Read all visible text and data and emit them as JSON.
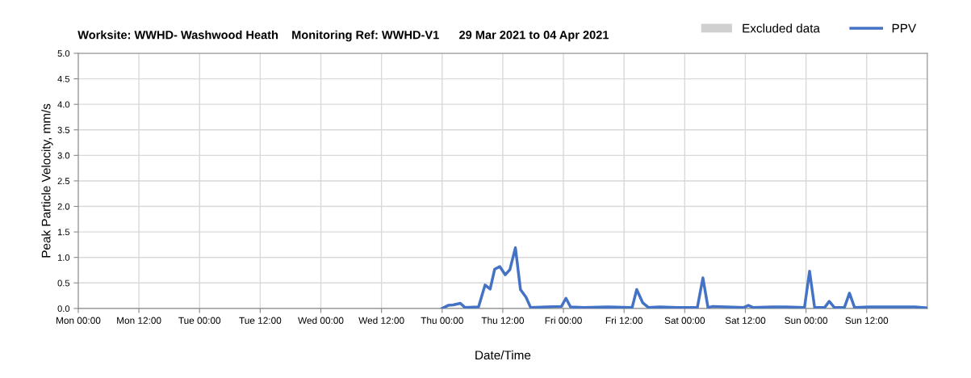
{
  "chart_data": {
    "type": "line",
    "title": "Worksite: WWHD- Washwood Heath    Monitoring Ref: WWHD-V1      29 Mar 2021 to 04 Apr 2021",
    "xlabel": "Date/Time",
    "ylabel": "Peak Particle Velocity, mm/s",
    "xlim": [
      "2021-03-29T00:00",
      "2021-04-05T00:00"
    ],
    "xticks": [
      {
        "value": "2021-03-29T00:00",
        "label": "Mon 00:00"
      },
      {
        "value": "2021-03-29T12:00",
        "label": "Mon 12:00"
      },
      {
        "value": "2021-03-30T00:00",
        "label": "Tue 00:00"
      },
      {
        "value": "2021-03-30T12:00",
        "label": "Tue 12:00"
      },
      {
        "value": "2021-03-31T00:00",
        "label": "Wed 00:00"
      },
      {
        "value": "2021-03-31T12:00",
        "label": "Wed 12:00"
      },
      {
        "value": "2021-04-01T00:00",
        "label": "Thu 00:00"
      },
      {
        "value": "2021-04-01T12:00",
        "label": "Thu 12:00"
      },
      {
        "value": "2021-04-02T00:00",
        "label": "Fri 00:00"
      },
      {
        "value": "2021-04-02T12:00",
        "label": "Fri 12:00"
      },
      {
        "value": "2021-04-03T00:00",
        "label": "Sat 00:00"
      },
      {
        "value": "2021-04-03T12:00",
        "label": "Sat 12:00"
      },
      {
        "value": "2021-04-04T00:00",
        "label": "Sun 00:00"
      },
      {
        "value": "2021-04-04T12:00",
        "label": "Sun 12:00"
      }
    ],
    "ylim": [
      0,
      5
    ],
    "yticks": [
      {
        "value": 0,
        "label": "0.0"
      },
      {
        "value": 0.5,
        "label": "0.5"
      },
      {
        "value": 1,
        "label": "1.0"
      },
      {
        "value": 1.5,
        "label": "1.5"
      },
      {
        "value": 2,
        "label": "2.0"
      },
      {
        "value": 2.5,
        "label": "2.5"
      },
      {
        "value": 3,
        "label": "3.0"
      },
      {
        "value": 3.5,
        "label": "3.5"
      },
      {
        "value": 4,
        "label": "4.0"
      },
      {
        "value": 4.5,
        "label": "4.5"
      },
      {
        "value": 5,
        "label": "5.0"
      }
    ],
    "grid": true,
    "legend": "top right",
    "line_style": "solid",
    "marker": "none",
    "series": [
      {
        "name": "Excluded data",
        "type": "area",
        "color": "#d0d0d0"
      },
      {
        "name": "PPV",
        "color": "#4472c4",
        "x": [
          "2021-04-01T00:00",
          "2021-04-01T01:12",
          "2021-04-01T02:12",
          "2021-04-01T03:36",
          "2021-04-01T04:30",
          "2021-04-01T07:12",
          "2021-04-01T08:30",
          "2021-04-01T09:30",
          "2021-04-01T10:24",
          "2021-04-01T11:24",
          "2021-04-01T12:30",
          "2021-04-01T13:24",
          "2021-04-01T14:30",
          "2021-04-01T15:30",
          "2021-04-01T16:36",
          "2021-04-01T17:30",
          "2021-04-01T20:36",
          "2021-04-01T23:36",
          "2021-04-02T00:30",
          "2021-04-02T01:24",
          "2021-04-02T04:00",
          "2021-04-02T08:48",
          "2021-04-02T13:36",
          "2021-04-02T14:30",
          "2021-04-02T15:42",
          "2021-04-02T16:48",
          "2021-04-02T19:00",
          "2021-04-02T22:42",
          "2021-04-03T02:30",
          "2021-04-03T03:36",
          "2021-04-03T04:36",
          "2021-04-03T05:36",
          "2021-04-03T08:18",
          "2021-04-03T11:42",
          "2021-04-03T12:36",
          "2021-04-03T13:30",
          "2021-04-03T17:18",
          "2021-04-03T20:00",
          "2021-04-03T23:42",
          "2021-04-04T00:42",
          "2021-04-04T01:42",
          "2021-04-04T03:42",
          "2021-04-04T04:36",
          "2021-04-04T05:36",
          "2021-04-04T07:36",
          "2021-04-04T08:36",
          "2021-04-04T09:36",
          "2021-04-04T12:30",
          "2021-04-04T16:48",
          "2021-04-04T21:36",
          "2021-04-04T23:54"
        ],
        "values": [
          0,
          0.06,
          0.07,
          0.1,
          0.02,
          0.03,
          0.46,
          0.38,
          0.77,
          0.82,
          0.66,
          0.76,
          1.19,
          0.37,
          0.22,
          0.02,
          0.03,
          0.04,
          0.2,
          0.03,
          0.02,
          0.03,
          0.02,
          0.37,
          0.11,
          0.02,
          0.03,
          0.02,
          0.02,
          0.6,
          0.02,
          0.04,
          0.03,
          0.02,
          0.06,
          0.02,
          0.03,
          0.03,
          0.02,
          0.73,
          0.02,
          0.02,
          0.14,
          0.02,
          0.02,
          0.3,
          0.02,
          0.03,
          0.03,
          0.03,
          0.01
        ]
      }
    ]
  }
}
